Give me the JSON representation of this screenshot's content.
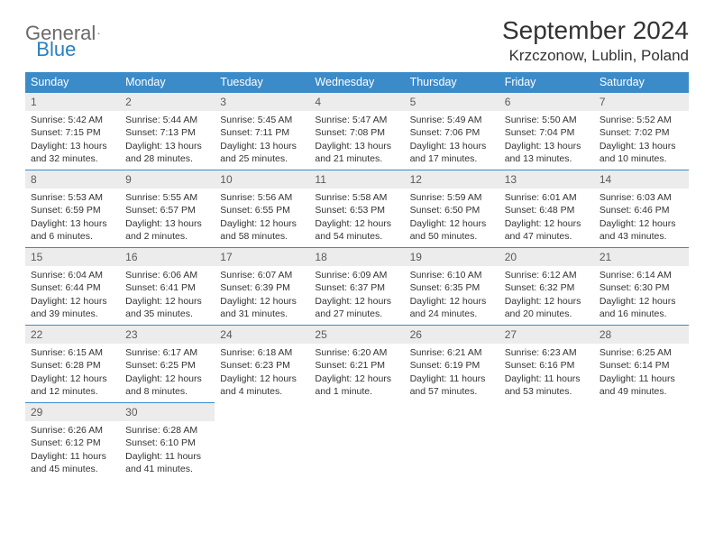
{
  "logo": {
    "general": "General",
    "blue": "Blue"
  },
  "title": "September 2024",
  "location": "Krzczonow, Lublin, Poland",
  "colors": {
    "header_bg": "#3b8bc9",
    "header_text": "#ffffff",
    "daynum_bg": "#ececec",
    "daynum_text": "#5a5a5a",
    "cell_border": "#3b8bc9",
    "body_text": "#333333",
    "logo_general": "#6a6a6a",
    "logo_blue": "#2a7fbf"
  },
  "weekdays": [
    "Sunday",
    "Monday",
    "Tuesday",
    "Wednesday",
    "Thursday",
    "Friday",
    "Saturday"
  ],
  "days": [
    {
      "n": "1",
      "sr": "5:42 AM",
      "ss": "7:15 PM",
      "dl": "13 hours and 32 minutes."
    },
    {
      "n": "2",
      "sr": "5:44 AM",
      "ss": "7:13 PM",
      "dl": "13 hours and 28 minutes."
    },
    {
      "n": "3",
      "sr": "5:45 AM",
      "ss": "7:11 PM",
      "dl": "13 hours and 25 minutes."
    },
    {
      "n": "4",
      "sr": "5:47 AM",
      "ss": "7:08 PM",
      "dl": "13 hours and 21 minutes."
    },
    {
      "n": "5",
      "sr": "5:49 AM",
      "ss": "7:06 PM",
      "dl": "13 hours and 17 minutes."
    },
    {
      "n": "6",
      "sr": "5:50 AM",
      "ss": "7:04 PM",
      "dl": "13 hours and 13 minutes."
    },
    {
      "n": "7",
      "sr": "5:52 AM",
      "ss": "7:02 PM",
      "dl": "13 hours and 10 minutes."
    },
    {
      "n": "8",
      "sr": "5:53 AM",
      "ss": "6:59 PM",
      "dl": "13 hours and 6 minutes."
    },
    {
      "n": "9",
      "sr": "5:55 AM",
      "ss": "6:57 PM",
      "dl": "13 hours and 2 minutes."
    },
    {
      "n": "10",
      "sr": "5:56 AM",
      "ss": "6:55 PM",
      "dl": "12 hours and 58 minutes."
    },
    {
      "n": "11",
      "sr": "5:58 AM",
      "ss": "6:53 PM",
      "dl": "12 hours and 54 minutes."
    },
    {
      "n": "12",
      "sr": "5:59 AM",
      "ss": "6:50 PM",
      "dl": "12 hours and 50 minutes."
    },
    {
      "n": "13",
      "sr": "6:01 AM",
      "ss": "6:48 PM",
      "dl": "12 hours and 47 minutes."
    },
    {
      "n": "14",
      "sr": "6:03 AM",
      "ss": "6:46 PM",
      "dl": "12 hours and 43 minutes."
    },
    {
      "n": "15",
      "sr": "6:04 AM",
      "ss": "6:44 PM",
      "dl": "12 hours and 39 minutes."
    },
    {
      "n": "16",
      "sr": "6:06 AM",
      "ss": "6:41 PM",
      "dl": "12 hours and 35 minutes."
    },
    {
      "n": "17",
      "sr": "6:07 AM",
      "ss": "6:39 PM",
      "dl": "12 hours and 31 minutes."
    },
    {
      "n": "18",
      "sr": "6:09 AM",
      "ss": "6:37 PM",
      "dl": "12 hours and 27 minutes."
    },
    {
      "n": "19",
      "sr": "6:10 AM",
      "ss": "6:35 PM",
      "dl": "12 hours and 24 minutes."
    },
    {
      "n": "20",
      "sr": "6:12 AM",
      "ss": "6:32 PM",
      "dl": "12 hours and 20 minutes."
    },
    {
      "n": "21",
      "sr": "6:14 AM",
      "ss": "6:30 PM",
      "dl": "12 hours and 16 minutes."
    },
    {
      "n": "22",
      "sr": "6:15 AM",
      "ss": "6:28 PM",
      "dl": "12 hours and 12 minutes."
    },
    {
      "n": "23",
      "sr": "6:17 AM",
      "ss": "6:25 PM",
      "dl": "12 hours and 8 minutes."
    },
    {
      "n": "24",
      "sr": "6:18 AM",
      "ss": "6:23 PM",
      "dl": "12 hours and 4 minutes."
    },
    {
      "n": "25",
      "sr": "6:20 AM",
      "ss": "6:21 PM",
      "dl": "12 hours and 1 minute."
    },
    {
      "n": "26",
      "sr": "6:21 AM",
      "ss": "6:19 PM",
      "dl": "11 hours and 57 minutes."
    },
    {
      "n": "27",
      "sr": "6:23 AM",
      "ss": "6:16 PM",
      "dl": "11 hours and 53 minutes."
    },
    {
      "n": "28",
      "sr": "6:25 AM",
      "ss": "6:14 PM",
      "dl": "11 hours and 49 minutes."
    },
    {
      "n": "29",
      "sr": "6:26 AM",
      "ss": "6:12 PM",
      "dl": "11 hours and 45 minutes."
    },
    {
      "n": "30",
      "sr": "6:28 AM",
      "ss": "6:10 PM",
      "dl": "11 hours and 41 minutes."
    }
  ],
  "labels": {
    "sunrise": "Sunrise:",
    "sunset": "Sunset:",
    "daylight": "Daylight:"
  }
}
